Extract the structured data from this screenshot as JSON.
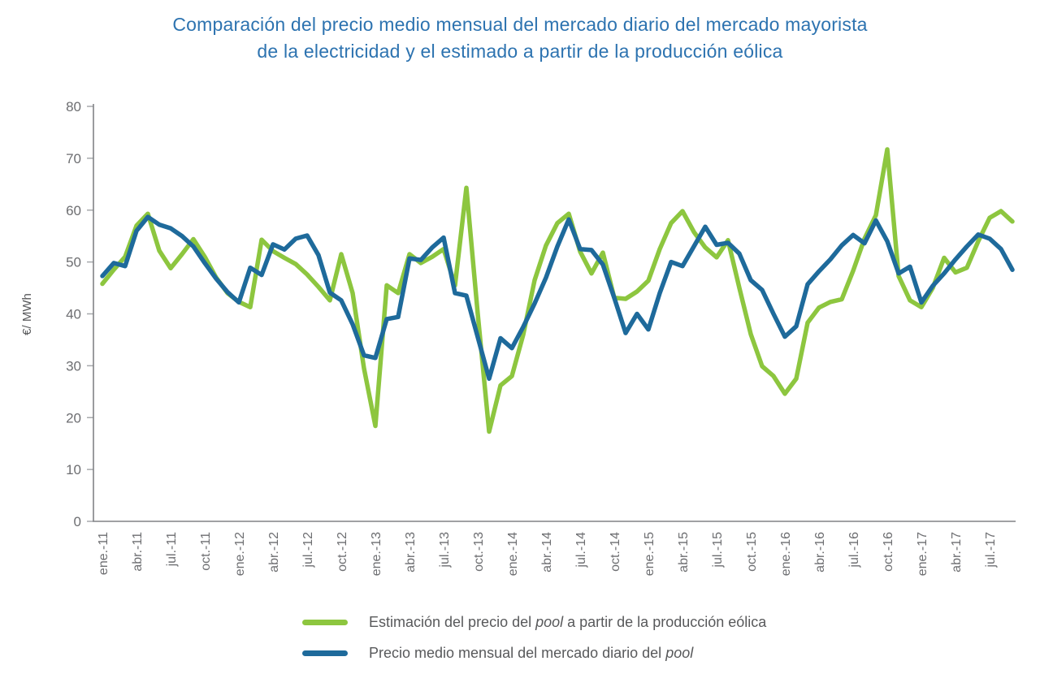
{
  "title": {
    "line1": "Comparación del precio medio mensual del mercado diario del mercado mayorista",
    "line2": "de la electricidad y el estimado a partir de la producción eólica"
  },
  "legend": {
    "items": [
      {
        "pre": "Estimación del precio del ",
        "italic": "pool",
        "post": " a partir de la producción eólica"
      },
      {
        "pre": "Precio medio mensual del mercado diario del ",
        "italic": "pool",
        "post": ""
      }
    ]
  },
  "chart_data": {
    "type": "line",
    "title": "Comparación del precio medio mensual del mercado diario del mercado mayorista de la electricidad y el estimado a partir de la producción eólica",
    "ylabel": "€/ MWh",
    "ylim": [
      0,
      80
    ],
    "ytick_step": 10,
    "grid": false,
    "legend_position": "bottom",
    "x_unit": "month",
    "x_start": "ene.-11",
    "x_end": "sep.-17",
    "x_tick_every_months": 3,
    "x_tick_labels": [
      "ene.-11",
      "abr.-11",
      "jul.-11",
      "oct.-11",
      "ene.-12",
      "abr.-12",
      "jul.-12",
      "oct.-12",
      "ene.-13",
      "abr.-13",
      "jul.-13",
      "oct.-13",
      "ene.-14",
      "abr.-14",
      "jul.-14",
      "oct.-14",
      "ene.-15",
      "abr.-15",
      "jul.-15",
      "oct.-15",
      "ene.-16",
      "abr.-16",
      "jul.-16",
      "oct.-16",
      "ene.-17",
      "abr.-17",
      "jul.-17"
    ],
    "axis_color": "#808285",
    "tick_color": "#a7a9ac",
    "series": [
      {
        "name": "Estimación del precio del pool a partir de la producción eólica",
        "color": "#8dc63f",
        "values": [
          45.8,
          48.5,
          51.0,
          57.0,
          59.3,
          52.2,
          48.8,
          51.5,
          54.4,
          51.0,
          47.0,
          44.0,
          42.3,
          41.3,
          54.3,
          52.1,
          50.8,
          49.6,
          47.6,
          45.2,
          42.6,
          51.5,
          44.0,
          29.5,
          18.4,
          45.5,
          44.0,
          51.5,
          49.8,
          51.0,
          52.5,
          45.5,
          64.3,
          40.0,
          17.3,
          26.2,
          28.0,
          36.0,
          46.5,
          53.2,
          57.5,
          59.3,
          52.0,
          47.8,
          51.8,
          43.1,
          42.9,
          44.3,
          46.4,
          52.5,
          57.5,
          59.8,
          55.8,
          52.8,
          50.9,
          54.2,
          45.0,
          36.1,
          29.9,
          28.0,
          24.6,
          27.5,
          38.3,
          41.2,
          42.3,
          42.8,
          48.3,
          54.5,
          59.0,
          71.7,
          47.3,
          42.6,
          41.3,
          45.0,
          50.8,
          48.0,
          48.9,
          54.0,
          58.5,
          59.8,
          57.8
        ]
      },
      {
        "name": "Precio medio mensual del mercado diario del pool",
        "color": "#1e6a9b",
        "values": [
          47.3,
          49.8,
          49.2,
          56.0,
          58.7,
          57.2,
          56.5,
          55.0,
          53.0,
          49.8,
          46.8,
          44.2,
          42.2,
          48.9,
          47.5,
          53.4,
          52.4,
          54.5,
          55.1,
          51.3,
          44.1,
          42.6,
          38.0,
          32.0,
          31.5,
          39.0,
          39.4,
          50.7,
          50.4,
          52.8,
          54.7,
          44.0,
          43.5,
          35.5,
          27.5,
          35.3,
          33.4,
          37.5,
          42.0,
          47.0,
          53.0,
          58.2,
          52.5,
          52.3,
          49.5,
          43.1,
          36.3,
          40.0,
          37.0,
          44.0,
          50.0,
          49.2,
          53.0,
          56.8,
          53.3,
          53.7,
          51.6,
          46.5,
          44.6,
          40.0,
          35.6,
          37.6,
          45.7,
          48.2,
          50.5,
          53.2,
          55.2,
          53.6,
          58.0,
          54.0,
          47.8,
          49.1,
          42.2,
          45.4,
          47.8,
          50.5,
          53.0,
          55.3,
          54.5,
          52.5,
          48.5
        ]
      }
    ]
  }
}
